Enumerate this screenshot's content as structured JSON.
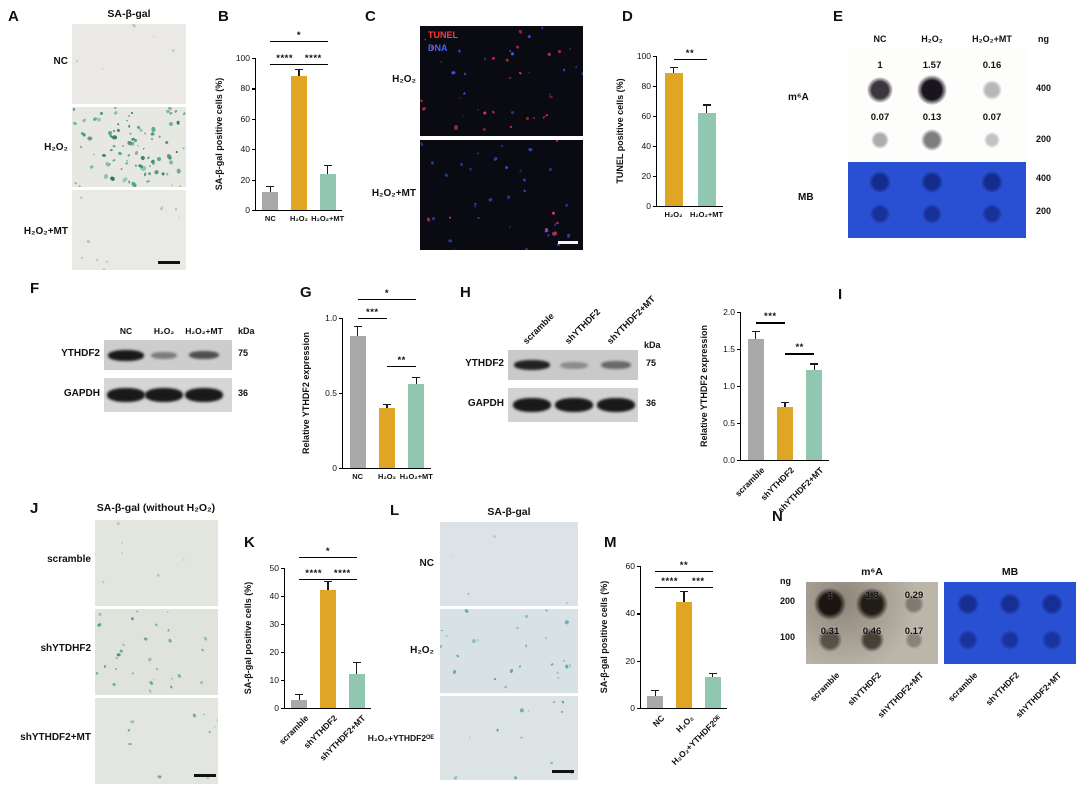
{
  "letters": {
    "A": "A",
    "B": "B",
    "C": "C",
    "D": "D",
    "E": "E",
    "F": "F",
    "G": "G",
    "H": "H",
    "I": "I",
    "J": "J",
    "K": "K",
    "L": "L",
    "M": "M",
    "N": "N"
  },
  "colors": {
    "bar_gray": "#a9a9a9",
    "bar_gold": "#dfa625",
    "bar_teal": "#91c6b0",
    "mb_blue": "#2950d2",
    "tunel_red": "#ff3b3b",
    "dna_blue": "#4663ff",
    "red_number": "#e8000b"
  },
  "panelA": {
    "title": "SA-β-gal",
    "rows": [
      {
        "name": "NC"
      },
      {
        "name": "H₂O₂"
      },
      {
        "name": "H₂O₂+MT"
      }
    ]
  },
  "panelC": {
    "overlay_tunel": "TUNEL",
    "overlay_dna": "DNA",
    "rows": [
      {
        "name": "H₂O₂"
      },
      {
        "name": "H₂O₂+MT"
      }
    ]
  },
  "panelE": {
    "columns": [
      "NC",
      "H₂O₂",
      "H₂O₂+MT"
    ],
    "unit": "ng",
    "m6a_label": "m⁶A",
    "mb_label": "MB",
    "m6a_rows": [
      {
        "ng": "400",
        "values": [
          "1",
          "1.57",
          "0.16"
        ]
      },
      {
        "ng": "200",
        "values": [
          "0.07",
          "0.13",
          "0.07"
        ]
      }
    ],
    "mb_rows": [
      {
        "ng": "400"
      },
      {
        "ng": "200"
      }
    ]
  },
  "panelF": {
    "lanes": [
      "NC",
      "H₂O₂",
      "H₂O₂+MT"
    ],
    "kda": "kDa",
    "proteins": [
      {
        "name": "YTHDF2",
        "kda": "75"
      },
      {
        "name": "GAPDH",
        "kda": "36"
      }
    ]
  },
  "panelH": {
    "lanes": [
      "scramble",
      "shYTHDF2",
      "shYTHDF2+MT"
    ],
    "kda": "kDa",
    "proteins": [
      {
        "name": "YTHDF2",
        "kda": "75"
      },
      {
        "name": "GAPDH",
        "kda": "36"
      }
    ]
  },
  "panelJ": {
    "title": "SA-β-gal (without H₂O₂)",
    "rows": [
      {
        "name": "scramble"
      },
      {
        "name": "shYTDHF2"
      },
      {
        "name": "shYTHDF2+MT"
      }
    ]
  },
  "panelL": {
    "title": "SA-β-gal",
    "rows": [
      {
        "name": "NC"
      },
      {
        "name": "H₂O₂"
      },
      {
        "name": "H₂O₂+YTHDF2ᴼᴱ"
      }
    ]
  },
  "panelN": {
    "unit": "ng",
    "m6a_label": "m⁶A",
    "mb_label": "MB",
    "ng_rows": [
      "200",
      "100"
    ],
    "m6a_values": [
      [
        "1",
        "1.3",
        "0.29"
      ],
      [
        "0.31",
        "0.46",
        "0.17"
      ]
    ],
    "m6a_lanes": [
      "scramble",
      "shYTHDF2",
      "shYTHDF2+MT"
    ],
    "mb_lanes": [
      "scramble",
      "shYTHDF2",
      "shYTHDF2+MT"
    ]
  },
  "chart_data": [
    {
      "id": "B",
      "type": "bar",
      "title": "",
      "ylabel": "SA-β-gal positive cells (%)",
      "ylim": [
        0,
        100
      ],
      "yticks": [
        "0",
        "20",
        "40",
        "60",
        "80",
        "100"
      ],
      "categories": [
        "NC",
        "H₂O₂",
        "H₂O₂+MT"
      ],
      "values": [
        12,
        88,
        24
      ],
      "errors": [
        3,
        4,
        5
      ],
      "colors": [
        "#a9a9a9",
        "#dfa625",
        "#91c6b0"
      ],
      "significance": [
        {
          "from": 0,
          "to": 1,
          "label": "****",
          "y": 96
        },
        {
          "from": 1,
          "to": 2,
          "label": "****",
          "y": 96
        },
        {
          "from": 0,
          "to": 2,
          "label": "*",
          "y": 111
        }
      ]
    },
    {
      "id": "D",
      "type": "bar",
      "title": "",
      "ylabel": "TUNEL positive cells (%)",
      "ylim": [
        0,
        100
      ],
      "yticks": [
        "0",
        "20",
        "40",
        "60",
        "80",
        "100"
      ],
      "categories": [
        "H₂O₂",
        "H₂O₂+MT"
      ],
      "values": [
        89,
        62
      ],
      "errors": [
        3,
        5
      ],
      "colors": [
        "#dfa625",
        "#91c6b0"
      ],
      "significance": [
        {
          "from": 0,
          "to": 1,
          "label": "**",
          "y": 98
        }
      ]
    },
    {
      "id": "G",
      "type": "bar",
      "title": "",
      "ylabel": "Relative YTHDF2 expression",
      "ylim": [
        0,
        1.0
      ],
      "yticks": [
        "0",
        "0.5",
        "1.0"
      ],
      "categories": [
        "NC",
        "H₂O₂",
        "H₂O₂+MT"
      ],
      "values": [
        0.88,
        0.4,
        0.56
      ],
      "errors": [
        0.06,
        0.02,
        0.04
      ],
      "colors": [
        "#a9a9a9",
        "#dfa625",
        "#91c6b0"
      ],
      "significance": [
        {
          "from": 0,
          "to": 1,
          "label": "***",
          "y": 1.0
        },
        {
          "from": 1,
          "to": 2,
          "label": "**",
          "y": 0.68
        },
        {
          "from": 0,
          "to": 2,
          "label": "*",
          "y": 1.13
        }
      ]
    },
    {
      "id": "I",
      "type": "bar",
      "title": "",
      "ylabel": "Relative YTHDF2 expression",
      "ylim": [
        0,
        2.0
      ],
      "yticks": [
        "0.0",
        "0.5",
        "1.0",
        "1.5",
        "2.0"
      ],
      "categories": [
        "scramble",
        "shYTHDF2",
        "shYTHDF2+MT"
      ],
      "values": [
        1.63,
        0.72,
        1.22
      ],
      "errors": [
        0.1,
        0.05,
        0.07
      ],
      "colors": [
        "#a9a9a9",
        "#dfa625",
        "#91c6b0"
      ],
      "significance": [
        {
          "from": 0,
          "to": 1,
          "label": "***",
          "y": 1.86
        },
        {
          "from": 1,
          "to": 2,
          "label": "**",
          "y": 1.44
        }
      ]
    },
    {
      "id": "K",
      "type": "bar",
      "title": "",
      "ylabel": "SA-β-gal positive cells (%)",
      "ylim": [
        0,
        50
      ],
      "yticks": [
        "0",
        "10",
        "20",
        "30",
        "40",
        "50"
      ],
      "categories": [
        "scramble",
        "shYTHDF2",
        "shYTHDF2+MT"
      ],
      "values": [
        3,
        42,
        12
      ],
      "errors": [
        1.5,
        3,
        4
      ],
      "colors": [
        "#a9a9a9",
        "#dfa625",
        "#91c6b0"
      ],
      "significance": [
        {
          "from": 0,
          "to": 1,
          "label": "****",
          "y": 46
        },
        {
          "from": 1,
          "to": 2,
          "label": "****",
          "y": 46
        },
        {
          "from": 0,
          "to": 2,
          "label": "*",
          "y": 54
        }
      ]
    },
    {
      "id": "M",
      "type": "bar",
      "title": "",
      "ylabel": "SA-β-gal positive cells (%)",
      "ylim": [
        0,
        60
      ],
      "yticks": [
        "0",
        "20",
        "40",
        "60"
      ],
      "categories": [
        "NC",
        "H₂O₂",
        "H₂O₂+YTHDF2ᴼᴱ"
      ],
      "values": [
        5,
        45,
        13
      ],
      "errors": [
        2,
        4,
        1.5
      ],
      "colors": [
        "#a9a9a9",
        "#dfa625",
        "#91c6b0"
      ],
      "significance": [
        {
          "from": 0,
          "to": 1,
          "label": "****",
          "y": 51
        },
        {
          "from": 1,
          "to": 2,
          "label": "***",
          "y": 51
        },
        {
          "from": 0,
          "to": 2,
          "label": "**",
          "y": 58
        }
      ]
    }
  ]
}
